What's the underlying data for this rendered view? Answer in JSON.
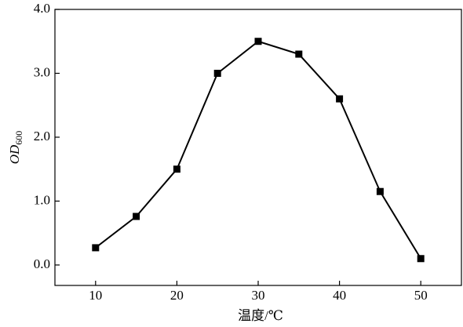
{
  "chart_data": {
    "type": "line",
    "x": [
      10,
      15,
      20,
      25,
      30,
      35,
      40,
      45,
      50
    ],
    "series": [
      {
        "color": "#000000",
        "values": [
          0.27,
          0.76,
          1.5,
          3.0,
          3.5,
          3.3,
          2.6,
          1.15,
          0.1
        ]
      }
    ],
    "xlim": [
      5,
      55
    ],
    "xticks": [
      10,
      20,
      30,
      40,
      50
    ],
    "ylim": [
      -0.32,
      4.0
    ],
    "yticks": [
      {
        "value": 0,
        "label": "0.0"
      },
      {
        "value": 1,
        "label": "1.0"
      },
      {
        "value": 2,
        "label": "2.0"
      },
      {
        "value": 3,
        "label": "3.0"
      },
      {
        "value": 4,
        "label": "4.0"
      }
    ],
    "xlabel": "温度/℃",
    "ylabel": "OD",
    "ylabel_subscript": "600",
    "grid": false
  }
}
